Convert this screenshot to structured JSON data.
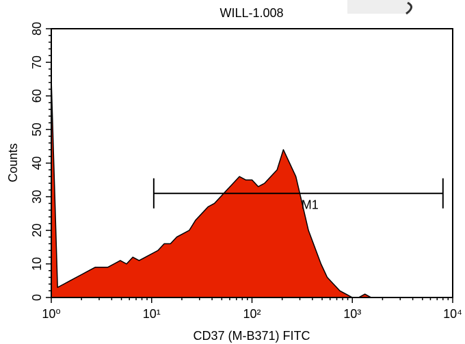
{
  "chart_data": {
    "type": "histogram",
    "title": "WILL-1.008",
    "xlabel": "CD37 (M-B371) FITC",
    "ylabel": "Counts",
    "xscale": "log",
    "xlim": [
      1,
      10000
    ],
    "ylim": [
      0,
      80
    ],
    "xticks": [
      {
        "value": 1,
        "label": "10⁰"
      },
      {
        "value": 10,
        "label": "10¹"
      },
      {
        "value": 100,
        "label": "10²"
      },
      {
        "value": 1000,
        "label": "10³"
      },
      {
        "value": 10000,
        "label": "10⁴"
      }
    ],
    "yticks": [
      0,
      10,
      20,
      30,
      40,
      50,
      60,
      70,
      80
    ],
    "minor_ticks": true,
    "color": "#e82200",
    "x": [
      1,
      1.155,
      1.334,
      1.54,
      1.778,
      2.054,
      2.371,
      2.738,
      3.162,
      3.652,
      4.217,
      4.87,
      5.623,
      6.494,
      7.499,
      8.66,
      10,
      11.55,
      13.34,
      15.4,
      17.78,
      20.54,
      23.71,
      27.38,
      31.62,
      36.52,
      42.17,
      48.7,
      56.23,
      64.94,
      74.99,
      86.6,
      100,
      115.5,
      133.4,
      154,
      177.8,
      205.4,
      237.1,
      273.8,
      316.2,
      365.2,
      421.7,
      487,
      562.3,
      649.4,
      749.9,
      866,
      1000,
      1155,
      1334,
      1540,
      1778
    ],
    "values": [
      65,
      3,
      4,
      5,
      6,
      7,
      8,
      9,
      9,
      9,
      10,
      11,
      10,
      12,
      11,
      12,
      13,
      14,
      16,
      16,
      18,
      19,
      20,
      23,
      25,
      27,
      28,
      30,
      32,
      34,
      36,
      35,
      35,
      33,
      34,
      36,
      38,
      44,
      40,
      36,
      28,
      20,
      15,
      10,
      6,
      4,
      2,
      1,
      0,
      0,
      1,
      0,
      0
    ],
    "markers": [
      {
        "label": "M1",
        "range": [
          10.5,
          8000
        ],
        "level": 31
      }
    ]
  }
}
